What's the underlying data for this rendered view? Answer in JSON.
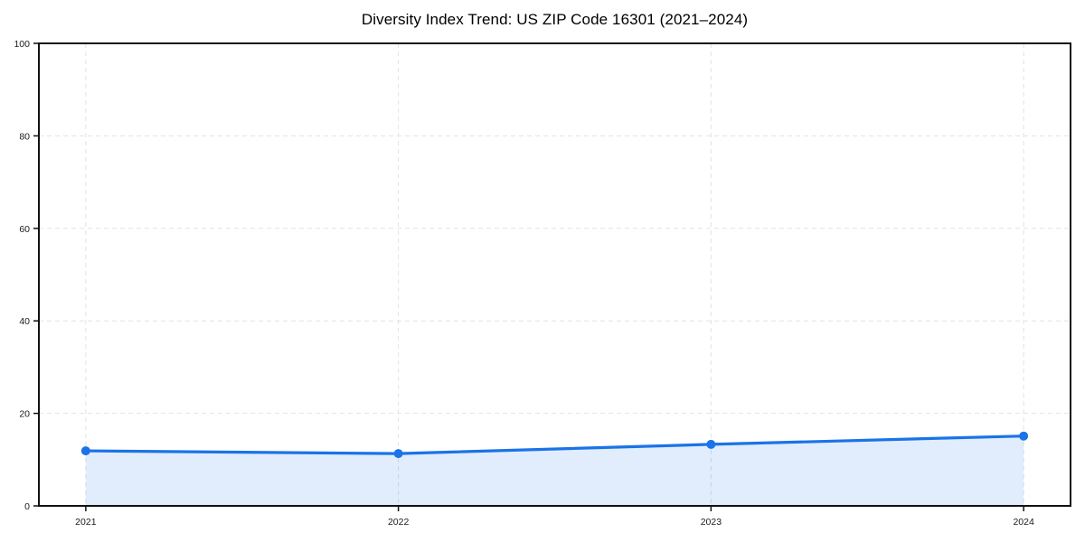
{
  "page": {
    "background_color": "#ffffff"
  },
  "chart_data": {
    "type": "line",
    "title": "Diversity Index Trend: US ZIP Code 16301 (2021–2024)",
    "categories": [
      "2021",
      "2022",
      "2023",
      "2024"
    ],
    "series": [
      {
        "name": "Diversity Index",
        "values": [
          11.9,
          11.3,
          13.3,
          15.1
        ]
      }
    ],
    "xlabel": "",
    "ylabel": "",
    "ylim": [
      0,
      100
    ],
    "yticks": [
      0,
      20,
      40,
      60,
      80,
      100
    ],
    "grid": true,
    "grid_style": "dashed",
    "legend_position": "none",
    "area_fill": true,
    "marker": "circle",
    "colors": {
      "line": "#1a73e8",
      "marker": "#1a73e8",
      "area_fill": "#1a73e8",
      "area_fill_opacity": 0.13,
      "grid": "#e2e2e2",
      "axis": "#111111",
      "tick_text": "#1a1a1a",
      "title_text": "#000000"
    }
  }
}
